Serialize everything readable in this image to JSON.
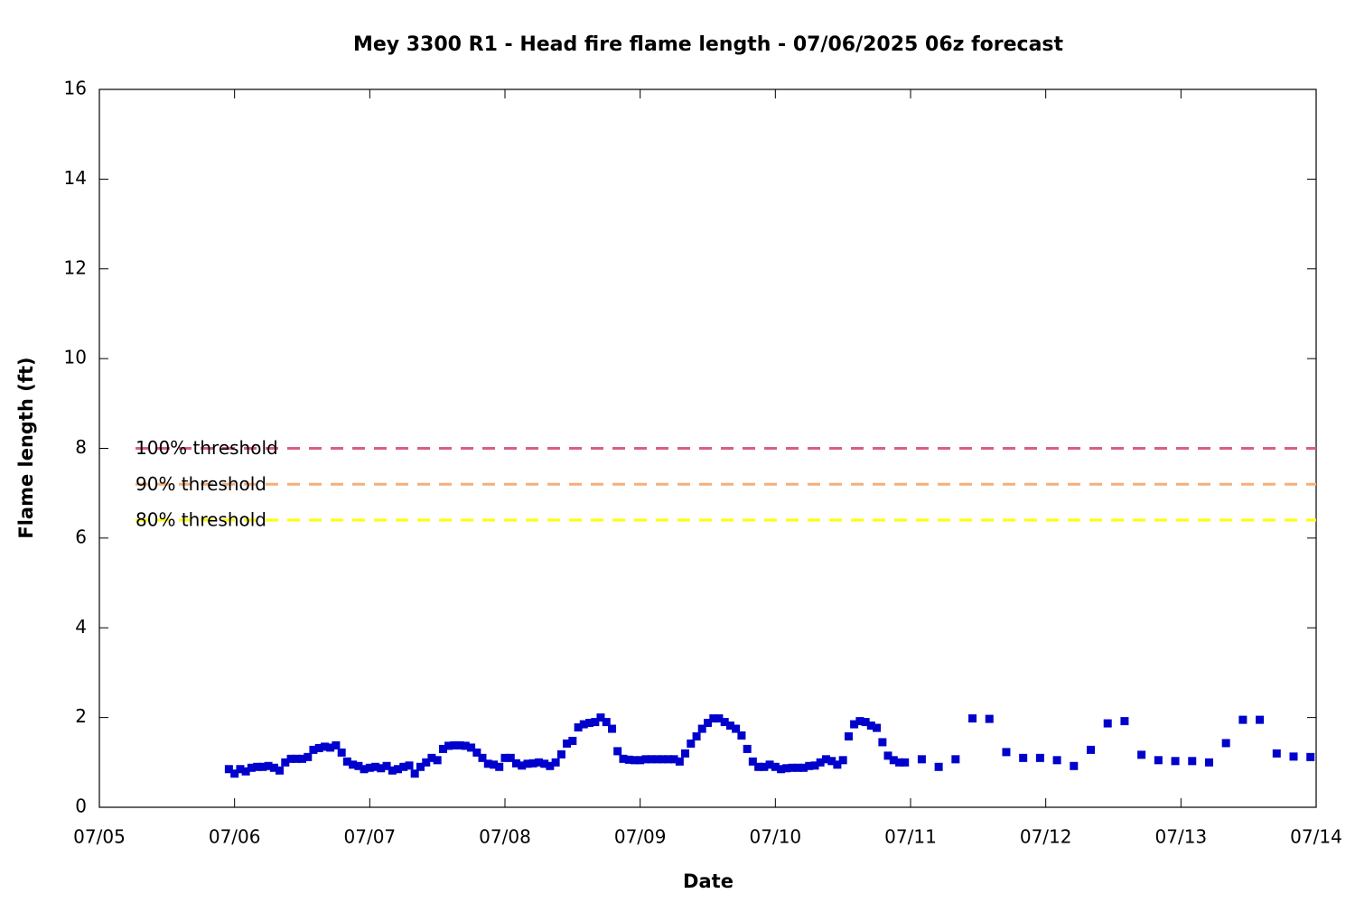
{
  "chart_data": {
    "type": "scatter",
    "title": "Mey 3300 R1 - Head fire flame length - 07/06/2025 06z forecast",
    "xlabel": "Date",
    "ylabel": "Flame length (ft)",
    "xlim": [
      0,
      9
    ],
    "xticks": [
      {
        "value": 0,
        "label": "07/05"
      },
      {
        "value": 1,
        "label": "07/06"
      },
      {
        "value": 2,
        "label": "07/07"
      },
      {
        "value": 3,
        "label": "07/08"
      },
      {
        "value": 4,
        "label": "07/09"
      },
      {
        "value": 5,
        "label": "07/10"
      },
      {
        "value": 6,
        "label": "07/11"
      },
      {
        "value": 7,
        "label": "07/12"
      },
      {
        "value": 8,
        "label": "07/13"
      },
      {
        "value": 9,
        "label": "07/14"
      }
    ],
    "ylim": [
      0,
      16
    ],
    "yticks": [
      0,
      2,
      4,
      6,
      8,
      10,
      12,
      14,
      16
    ],
    "thresholds": [
      {
        "name": "100% threshold",
        "value": 8.0,
        "color": "#d8607e"
      },
      {
        "name": "90% threshold",
        "value": 7.2,
        "color": "#f3b07c"
      },
      {
        "name": "80% threshold",
        "value": 6.4,
        "color": "#ffff00"
      }
    ],
    "series": [
      {
        "color": "#0000cc",
        "x": [
          0.958,
          1,
          1.042,
          1.083,
          1.125,
          1.167,
          1.208,
          1.25,
          1.292,
          1.333,
          1.375,
          1.417,
          1.458,
          1.5,
          1.542,
          1.583,
          1.625,
          1.667,
          1.708,
          1.75,
          1.792,
          1.833,
          1.875,
          1.917,
          1.958,
          2,
          2.042,
          2.083,
          2.125,
          2.167,
          2.208,
          2.25,
          2.292,
          2.333,
          2.375,
          2.417,
          2.458,
          2.5,
          2.542,
          2.583,
          2.625,
          2.667,
          2.708,
          2.75,
          2.792,
          2.833,
          2.875,
          2.917,
          2.958,
          3,
          3.042,
          3.083,
          3.125,
          3.167,
          3.208,
          3.25,
          3.292,
          3.333,
          3.375,
          3.417,
          3.458,
          3.5,
          3.542,
          3.583,
          3.625,
          3.667,
          3.708,
          3.75,
          3.792,
          3.833,
          3.875,
          3.917,
          3.958,
          4,
          4.042,
          4.083,
          4.125,
          4.167,
          4.208,
          4.25,
          4.292,
          4.333,
          4.375,
          4.417,
          4.458,
          4.5,
          4.542,
          4.583,
          4.625,
          4.667,
          4.708,
          4.75,
          4.792,
          4.833,
          4.875,
          4.917,
          4.958,
          5,
          5.042,
          5.083,
          5.125,
          5.167,
          5.208,
          5.25,
          5.292,
          5.333,
          5.375,
          5.417,
          5.458,
          5.5,
          5.542,
          5.583,
          5.625,
          5.667,
          5.708,
          5.75,
          5.792,
          5.833,
          5.875,
          5.917,
          5.958,
          6.083,
          6.208,
          6.333,
          6.458,
          6.583,
          6.708,
          6.833,
          6.958,
          7.083,
          7.208,
          7.333,
          7.458,
          7.583,
          7.708,
          7.833,
          7.958,
          8.083,
          8.208,
          8.333,
          8.458,
          8.583,
          8.708,
          8.833,
          8.958
        ],
        "values": [
          0.85,
          0.75,
          0.85,
          0.8,
          0.88,
          0.9,
          0.9,
          0.92,
          0.88,
          0.82,
          1.0,
          1.08,
          1.08,
          1.08,
          1.12,
          1.28,
          1.32,
          1.35,
          1.33,
          1.38,
          1.22,
          1.02,
          0.95,
          0.92,
          0.85,
          0.88,
          0.9,
          0.87,
          0.92,
          0.82,
          0.85,
          0.9,
          0.93,
          0.75,
          0.9,
          1.0,
          1.1,
          1.05,
          1.3,
          1.37,
          1.38,
          1.38,
          1.37,
          1.33,
          1.22,
          1.1,
          0.97,
          0.95,
          0.9,
          1.1,
          1.1,
          0.98,
          0.93,
          0.97,
          0.98,
          1.0,
          0.97,
          0.92,
          1.0,
          1.18,
          1.42,
          1.48,
          1.78,
          1.85,
          1.88,
          1.9,
          2.0,
          1.9,
          1.75,
          1.25,
          1.08,
          1.06,
          1.05,
          1.05,
          1.07,
          1.07,
          1.07,
          1.07,
          1.07,
          1.07,
          1.02,
          1.2,
          1.42,
          1.58,
          1.75,
          1.88,
          1.98,
          1.98,
          1.9,
          1.82,
          1.75,
          1.6,
          1.3,
          1.02,
          0.9,
          0.9,
          0.95,
          0.9,
          0.85,
          0.87,
          0.88,
          0.88,
          0.88,
          0.92,
          0.93,
          1.0,
          1.07,
          1.03,
          0.95,
          1.05,
          1.58,
          1.85,
          1.92,
          1.9,
          1.82,
          1.77,
          1.45,
          1.15,
          1.05,
          1.0,
          1.0,
          1.07,
          0.9,
          1.07,
          1.98,
          1.97,
          1.23,
          1.1,
          1.1,
          1.05,
          0.92,
          1.28,
          1.87,
          1.92,
          1.17,
          1.05,
          1.03,
          1.03,
          1.0,
          1.43,
          1.95,
          1.95,
          1.2,
          1.13,
          1.12
        ]
      }
    ]
  }
}
